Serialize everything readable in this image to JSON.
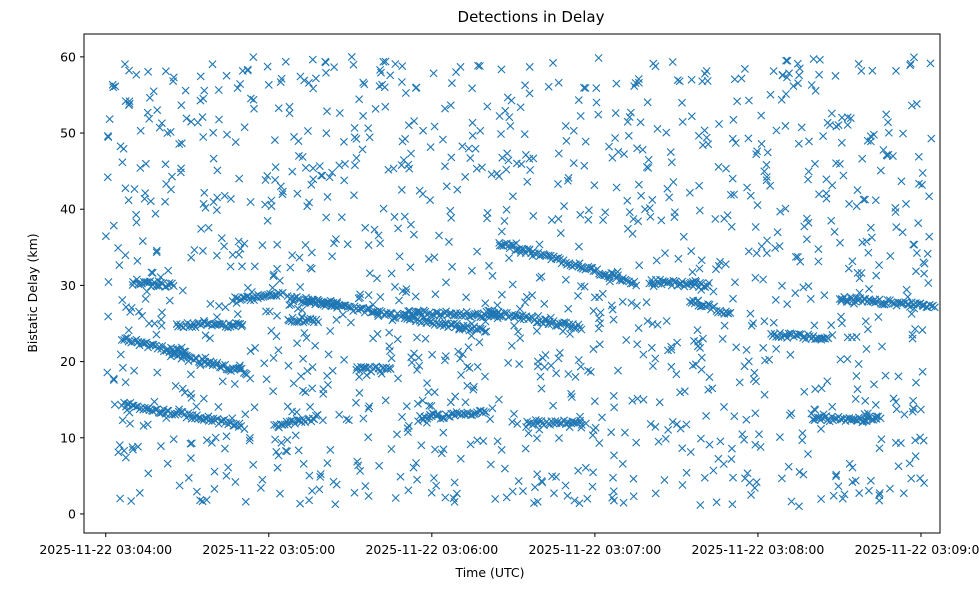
{
  "chart_data": {
    "type": "scatter",
    "title": "Detections in Delay",
    "xlabel": "Time (UTC)",
    "ylabel": "Bistatic Delay (km)",
    "x_range": [
      "2025-11-22 03:03:52",
      "2025-11-22 03:09:07"
    ],
    "ylim": [
      -2.5,
      63
    ],
    "x_ticks": [
      "2025-11-22 03:04:00",
      "2025-11-22 03:05:00",
      "2025-11-22 03:06:00",
      "2025-11-22 03:07:00",
      "2025-11-22 03:08:00",
      "2025-11-22 03:09:00"
    ],
    "y_ticks": [
      0,
      10,
      20,
      30,
      40,
      50,
      60
    ],
    "grid": false,
    "marker": "x",
    "color": "#1f77b4",
    "tracks": [
      {
        "t0": "2025-11-22 03:04:06",
        "t1": "2025-11-22 03:04:50",
        "y0": 14.5,
        "y1": 11.6
      },
      {
        "t0": "2025-11-22 03:04:06",
        "t1": "2025-11-22 03:04:30",
        "y0": 23.0,
        "y1": 21.0
      },
      {
        "t0": "2025-11-22 03:04:24",
        "t1": "2025-11-22 03:04:52",
        "y0": 21.0,
        "y1": 18.6
      },
      {
        "t0": "2025-11-22 03:04:10",
        "t1": "2025-11-22 03:04:25",
        "y0": 30.5,
        "y1": 30.0
      },
      {
        "t0": "2025-11-22 03:04:26",
        "t1": "2025-11-22 03:04:50",
        "y0": 24.8,
        "y1": 24.8
      },
      {
        "t0": "2025-11-22 03:04:48",
        "t1": "2025-11-22 03:05:05",
        "y0": 28.0,
        "y1": 28.8
      },
      {
        "t0": "2025-11-22 03:05:02",
        "t1": "2025-11-22 03:05:18",
        "y0": 11.5,
        "y1": 12.7
      },
      {
        "t0": "2025-11-22 03:05:07",
        "t1": "2025-11-22 03:05:25",
        "y0": 28.3,
        "y1": 27.5
      },
      {
        "t0": "2025-11-22 03:05:07",
        "t1": "2025-11-22 03:05:18",
        "y0": 25.5,
        "y1": 25.5
      },
      {
        "t0": "2025-11-22 03:05:14",
        "t1": "2025-11-22 03:06:20",
        "y0": 28.0,
        "y1": 24.0
      },
      {
        "t0": "2025-11-22 03:05:32",
        "t1": "2025-11-22 03:05:45",
        "y0": 19.0,
        "y1": 19.0
      },
      {
        "t0": "2025-11-22 03:05:50",
        "t1": "2025-11-22 03:06:25",
        "y0": 26.5,
        "y1": 26.0
      },
      {
        "t0": "2025-11-22 03:05:55",
        "t1": "2025-11-22 03:06:20",
        "y0": 12.5,
        "y1": 13.5
      },
      {
        "t0": "2025-11-22 03:06:20",
        "t1": "2025-11-22 03:06:55",
        "y0": 26.5,
        "y1": 24.5
      },
      {
        "t0": "2025-11-22 03:06:25",
        "t1": "2025-11-22 03:06:55",
        "y0": 35.5,
        "y1": 32.5
      },
      {
        "t0": "2025-11-22 03:06:55",
        "t1": "2025-11-22 03:07:15",
        "y0": 32.5,
        "y1": 30.3
      },
      {
        "t0": "2025-11-22 03:06:35",
        "t1": "2025-11-22 03:06:55",
        "y0": 12.0,
        "y1": 12.0
      },
      {
        "t0": "2025-11-22 03:07:20",
        "t1": "2025-11-22 03:07:42",
        "y0": 30.5,
        "y1": 30.0
      },
      {
        "t0": "2025-11-22 03:07:35",
        "t1": "2025-11-22 03:07:50",
        "y0": 28.0,
        "y1": 26.2
      },
      {
        "t0": "2025-11-22 03:08:05",
        "t1": "2025-11-22 03:08:26",
        "y0": 23.6,
        "y1": 23.0
      },
      {
        "t0": "2025-11-22 03:08:20",
        "t1": "2025-11-22 03:08:45",
        "y0": 12.5,
        "y1": 12.5
      },
      {
        "t0": "2025-11-22 03:08:30",
        "t1": "2025-11-22 03:09:05",
        "y0": 28.2,
        "y1": 27.3
      }
    ],
    "clutter": {
      "t0": "2025-11-22 03:04:00",
      "t1": "2025-11-22 03:09:04",
      "y0": 1,
      "y1": 60,
      "count": 1300
    }
  }
}
